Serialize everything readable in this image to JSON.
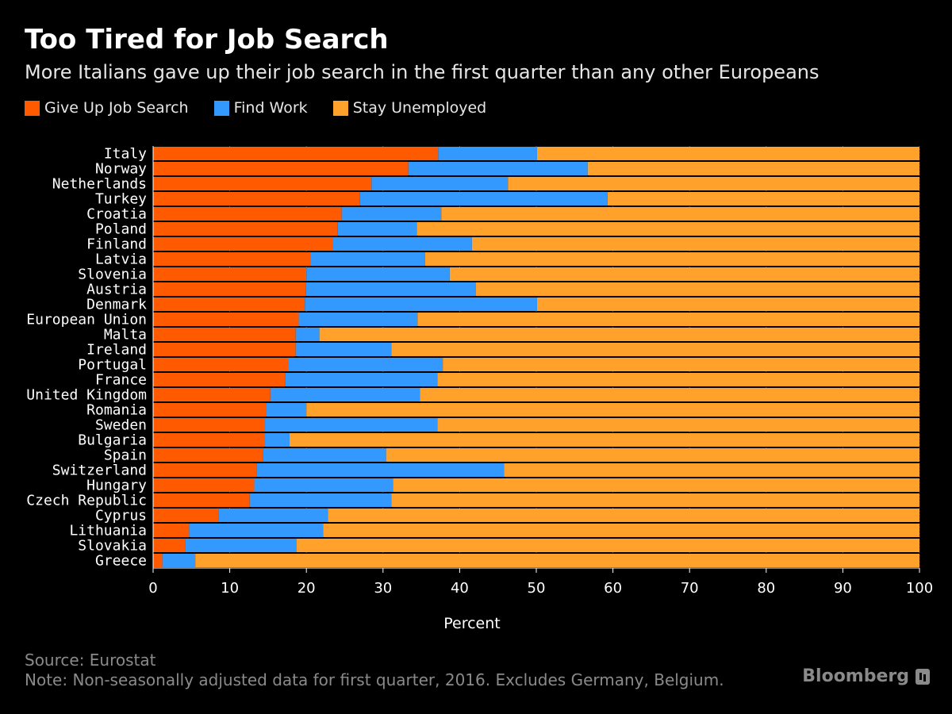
{
  "header": {
    "title": "Too Tired for Job Search",
    "subtitle": "More Italians gave up their job search in the first quarter than any other Europeans"
  },
  "legend": [
    {
      "label": "Give Up Job Search",
      "color": "#ff5a00"
    },
    {
      "label": "Find Work",
      "color": "#3399ff"
    },
    {
      "label": "Stay Unemployed",
      "color": "#ffa12a"
    }
  ],
  "footer": {
    "source": "Source: Eurostat",
    "note": "Note: Non-seasonally adjusted data for first quarter, 2016. Excludes Germany, Belgium."
  },
  "brand": {
    "name": "Bloomberg",
    "icon": "bloomberg-terminal-icon"
  },
  "chart_data": {
    "type": "bar",
    "orientation": "horizontal",
    "stacked": true,
    "title": "Too Tired for Job Search",
    "xlabel": "Percent",
    "ylabel": "",
    "xlim": [
      0,
      100
    ],
    "xticks": [
      0,
      10,
      20,
      30,
      40,
      50,
      60,
      70,
      80,
      90,
      100
    ],
    "grid": true,
    "legend_position": "top-left",
    "categories": [
      "Italy",
      "Norway",
      "Netherlands",
      "Turkey",
      "Croatia",
      "Poland",
      "Finland",
      "Latvia",
      "Slovenia",
      "Austria",
      "Denmark",
      "European Union",
      "Malta",
      "Ireland",
      "Portugal",
      "France",
      "United Kingdom",
      "Romania",
      "Sweden",
      "Bulgaria",
      "Spain",
      "Switzerland",
      "Hungary",
      "Czech Republic",
      "Cyprus",
      "Lithuania",
      "Slovakia",
      "Greece"
    ],
    "series": [
      {
        "name": "Give Up Job Search",
        "color": "#ff5a00",
        "values": [
          37.2,
          33.3,
          28.5,
          27.0,
          24.6,
          24.1,
          23.5,
          20.6,
          20.0,
          19.9,
          19.8,
          19.0,
          18.6,
          18.6,
          17.6,
          17.2,
          15.3,
          14.8,
          14.6,
          14.6,
          14.3,
          13.5,
          13.2,
          12.6,
          8.5,
          4.7,
          4.2,
          1.2
        ]
      },
      {
        "name": "Find Work",
        "color": "#3399ff",
        "values": [
          12.9,
          23.4,
          17.8,
          32.3,
          13.0,
          10.3,
          18.1,
          14.9,
          18.7,
          22.2,
          30.3,
          15.5,
          3.1,
          12.5,
          20.2,
          19.9,
          19.5,
          5.2,
          22.5,
          3.2,
          16.1,
          32.3,
          18.1,
          18.5,
          14.3,
          17.5,
          14.5,
          4.3
        ]
      },
      {
        "name": "Stay Unemployed",
        "color": "#ffa12a",
        "values": [
          49.9,
          43.3,
          53.7,
          40.7,
          62.4,
          65.6,
          58.4,
          64.5,
          61.3,
          57.9,
          49.9,
          65.5,
          78.3,
          68.9,
          62.2,
          62.9,
          65.2,
          80.0,
          62.9,
          82.2,
          69.6,
          54.2,
          68.7,
          68.9,
          77.2,
          77.8,
          81.3,
          94.5
        ]
      }
    ]
  }
}
